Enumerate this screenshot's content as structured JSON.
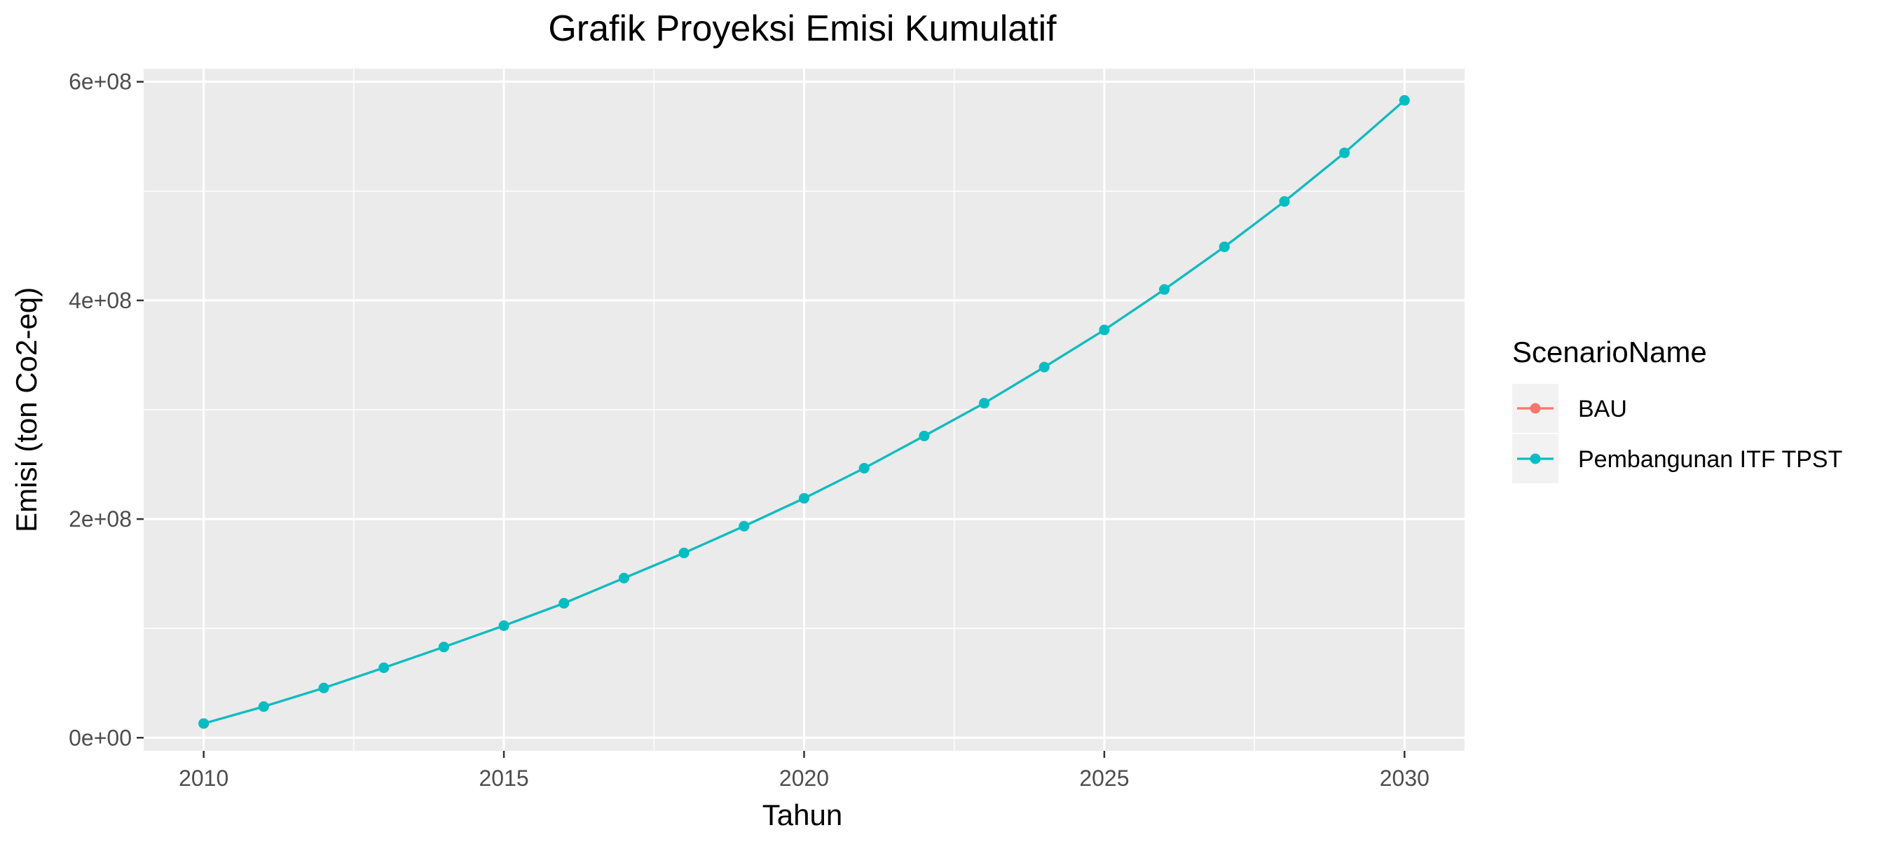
{
  "chart_data": {
    "type": "line",
    "title": "Grafik Proyeksi Emisi Kumulatif",
    "xlabel": "Tahun",
    "ylabel": "Emisi (ton Co2-eq)",
    "xlim": [
      2009.0,
      2031.0
    ],
    "ylim": [
      -12000000,
      612000000
    ],
    "x_ticks": [
      2010,
      2015,
      2020,
      2025,
      2030
    ],
    "x_tick_labels": [
      "2010",
      "2015",
      "2020",
      "2025",
      "2030"
    ],
    "y_ticks": [
      0,
      200000000,
      400000000,
      600000000
    ],
    "y_tick_labels": [
      "0e+00",
      "2e+08",
      "4e+08",
      "6e+08"
    ],
    "grid": true,
    "legend": {
      "title": "ScenarioName",
      "placement": "right"
    },
    "x": [
      2010,
      2011,
      2012,
      2013,
      2014,
      2015,
      2016,
      2017,
      2018,
      2019,
      2020,
      2021,
      2022,
      2023,
      2024,
      2025,
      2026,
      2027,
      2028,
      2029,
      2030
    ],
    "series": [
      {
        "name": "BAU",
        "color": "#F8766D",
        "values": [
          13000000,
          28500000,
          45500000,
          64000000,
          83000000,
          102500000,
          123000000,
          146000000,
          169000000,
          193500000,
          219000000,
          246500000,
          276000000,
          306000000,
          339000000,
          373000000,
          410000000,
          449000000,
          490500000,
          535000000,
          583000000
        ]
      },
      {
        "name": "Pembangunan ITF TPST",
        "color": "#00BFC4",
        "values": [
          13000000,
          28500000,
          45500000,
          64000000,
          83000000,
          102500000,
          123000000,
          146000000,
          169000000,
          193500000,
          219000000,
          246500000,
          276000000,
          306000000,
          339000000,
          373000000,
          410000000,
          449000000,
          490500000,
          535000000,
          583000000
        ]
      }
    ]
  }
}
